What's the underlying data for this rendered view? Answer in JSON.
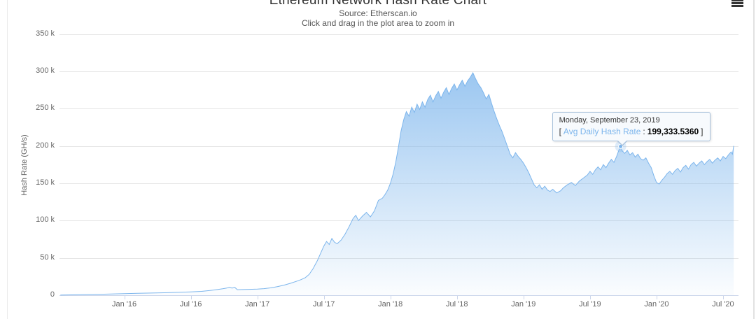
{
  "page": {
    "title": "Ethereum Network Hash Rate Chart",
    "subtitle_source": "Source: Etherscan.io",
    "subtitle_hint": "Click and drag in the plot area to zoom in"
  },
  "menu": {
    "context_icon": "hamburger-menu"
  },
  "tooltip": {
    "date": "Monday, September 23, 2019",
    "open": "[",
    "label": "Avg Daily Hash Rate",
    "sep": ":",
    "value": "199,333.5360",
    "close": "]"
  },
  "colors": {
    "series": "#7cb5ec",
    "grid": "#e6e6e6",
    "axis": "#ccd6eb",
    "label": "#666666",
    "title": "#333333",
    "tooltip_border": "#a9c2dc"
  },
  "chart_data": {
    "type": "area",
    "title": "Ethereum Network Hash Rate Chart",
    "subtitle": [
      "Source: Etherscan.io",
      "Click and drag in the plot area to zoom in"
    ],
    "xlabel": "",
    "ylabel": "Hash Rate (GH/s)",
    "x_unit": "decimal year",
    "y_unit": "GH/s, values stored in thousands (k)",
    "grid": true,
    "legend": false,
    "x_range": [
      2015.513,
      2020.616
    ],
    "y_range": [
      0,
      350
    ],
    "x_ticks": [
      {
        "v": 2016.0,
        "label": "Jan '16"
      },
      {
        "v": 2016.5,
        "label": "Jul '16"
      },
      {
        "v": 2017.0,
        "label": "Jan '17"
      },
      {
        "v": 2017.5,
        "label": "Jul '17"
      },
      {
        "v": 2018.0,
        "label": "Jan '18"
      },
      {
        "v": 2018.5,
        "label": "Jul '18"
      },
      {
        "v": 2019.0,
        "label": "Jan '19"
      },
      {
        "v": 2019.5,
        "label": "Jul '19"
      },
      {
        "v": 2020.0,
        "label": "Jan '20"
      },
      {
        "v": 2020.5,
        "label": "Jul '20"
      }
    ],
    "y_ticks": [
      {
        "v": 0,
        "label": "0"
      },
      {
        "v": 50,
        "label": "50 k"
      },
      {
        "v": 100,
        "label": "100 k"
      },
      {
        "v": 150,
        "label": "150 k"
      },
      {
        "v": 200,
        "label": "200 k"
      },
      {
        "v": 250,
        "label": "250 k"
      },
      {
        "v": 300,
        "label": "300 k"
      },
      {
        "v": 350,
        "label": "350 k"
      }
    ],
    "highlight_point": {
      "x": 2019.73,
      "y": 199.333536,
      "date": "Monday, September 23, 2019",
      "series": "Avg Daily Hash Rate",
      "value_ghs": "199,333.5360"
    },
    "series": [
      {
        "name": "Avg Daily Hash Rate",
        "color": "#7cb5ec",
        "points": [
          [
            2015.52,
            0.2
          ],
          [
            2015.6,
            0.5
          ],
          [
            2015.7,
            0.9
          ],
          [
            2015.8,
            1.2
          ],
          [
            2015.9,
            1.6
          ],
          [
            2016.0,
            2.1
          ],
          [
            2016.1,
            2.5
          ],
          [
            2016.2,
            2.9
          ],
          [
            2016.3,
            3.3
          ],
          [
            2016.4,
            3.8
          ],
          [
            2016.5,
            4.4
          ],
          [
            2016.58,
            5.2
          ],
          [
            2016.65,
            6.5
          ],
          [
            2016.7,
            7.6
          ],
          [
            2016.74,
            8.6
          ],
          [
            2016.77,
            9.6
          ],
          [
            2016.79,
            10.8
          ],
          [
            2016.81,
            9.5
          ],
          [
            2016.83,
            10.6
          ],
          [
            2016.85,
            7.4
          ],
          [
            2016.89,
            7.6
          ],
          [
            2016.94,
            7.9
          ],
          [
            2017.0,
            8.2
          ],
          [
            2017.05,
            8.8
          ],
          [
            2017.1,
            9.8
          ],
          [
            2017.15,
            11.5
          ],
          [
            2017.2,
            13.5
          ],
          [
            2017.25,
            16
          ],
          [
            2017.3,
            19
          ],
          [
            2017.33,
            21
          ],
          [
            2017.36,
            23.5
          ],
          [
            2017.39,
            28
          ],
          [
            2017.42,
            36
          ],
          [
            2017.45,
            46
          ],
          [
            2017.48,
            58
          ],
          [
            2017.5,
            66
          ],
          [
            2017.52,
            72
          ],
          [
            2017.54,
            68
          ],
          [
            2017.56,
            76
          ],
          [
            2017.58,
            71
          ],
          [
            2017.6,
            69
          ],
          [
            2017.63,
            74
          ],
          [
            2017.66,
            82
          ],
          [
            2017.69,
            92
          ],
          [
            2017.72,
            103
          ],
          [
            2017.74,
            107
          ],
          [
            2017.76,
            100
          ],
          [
            2017.79,
            106
          ],
          [
            2017.82,
            111
          ],
          [
            2017.85,
            105
          ],
          [
            2017.88,
            113
          ],
          [
            2017.91,
            127
          ],
          [
            2017.94,
            130
          ],
          [
            2017.96,
            135
          ],
          [
            2017.98,
            141
          ],
          [
            2018.0,
            150
          ],
          [
            2018.02,
            162
          ],
          [
            2018.04,
            178
          ],
          [
            2018.06,
            198
          ],
          [
            2018.08,
            220
          ],
          [
            2018.1,
            235
          ],
          [
            2018.12,
            246
          ],
          [
            2018.14,
            240
          ],
          [
            2018.16,
            252
          ],
          [
            2018.18,
            245
          ],
          [
            2018.2,
            256
          ],
          [
            2018.22,
            249
          ],
          [
            2018.24,
            259
          ],
          [
            2018.26,
            252
          ],
          [
            2018.28,
            262
          ],
          [
            2018.3,
            268
          ],
          [
            2018.32,
            259
          ],
          [
            2018.34,
            267
          ],
          [
            2018.36,
            273
          ],
          [
            2018.38,
            264
          ],
          [
            2018.4,
            272
          ],
          [
            2018.42,
            278
          ],
          [
            2018.44,
            269
          ],
          [
            2018.46,
            277
          ],
          [
            2018.48,
            283
          ],
          [
            2018.5,
            275
          ],
          [
            2018.52,
            282
          ],
          [
            2018.54,
            288
          ],
          [
            2018.56,
            280
          ],
          [
            2018.58,
            287
          ],
          [
            2018.6,
            292
          ],
          [
            2018.62,
            298
          ],
          [
            2018.64,
            290
          ],
          [
            2018.66,
            283
          ],
          [
            2018.68,
            278
          ],
          [
            2018.7,
            271
          ],
          [
            2018.72,
            263
          ],
          [
            2018.74,
            269
          ],
          [
            2018.76,
            257
          ],
          [
            2018.78,
            246
          ],
          [
            2018.8,
            236
          ],
          [
            2018.82,
            227
          ],
          [
            2018.84,
            219
          ],
          [
            2018.86,
            209
          ],
          [
            2018.88,
            199
          ],
          [
            2018.9,
            189
          ],
          [
            2018.92,
            184
          ],
          [
            2018.94,
            191
          ],
          [
            2018.96,
            186
          ],
          [
            2018.98,
            182
          ],
          [
            2019.0,
            177
          ],
          [
            2019.02,
            171
          ],
          [
            2019.04,
            164
          ],
          [
            2019.06,
            156
          ],
          [
            2019.08,
            148
          ],
          [
            2019.1,
            144
          ],
          [
            2019.12,
            148
          ],
          [
            2019.14,
            142
          ],
          [
            2019.16,
            146
          ],
          [
            2019.18,
            141
          ],
          [
            2019.2,
            139
          ],
          [
            2019.22,
            142
          ],
          [
            2019.25,
            137
          ],
          [
            2019.28,
            140
          ],
          [
            2019.3,
            144
          ],
          [
            2019.33,
            148
          ],
          [
            2019.36,
            151
          ],
          [
            2019.39,
            147
          ],
          [
            2019.42,
            153
          ],
          [
            2019.45,
            157
          ],
          [
            2019.48,
            161
          ],
          [
            2019.5,
            166
          ],
          [
            2019.52,
            162
          ],
          [
            2019.54,
            168
          ],
          [
            2019.56,
            172
          ],
          [
            2019.58,
            168
          ],
          [
            2019.6,
            175
          ],
          [
            2019.62,
            171
          ],
          [
            2019.64,
            177
          ],
          [
            2019.66,
            182
          ],
          [
            2019.68,
            178
          ],
          [
            2019.7,
            186
          ],
          [
            2019.71,
            191
          ],
          [
            2019.72,
            196
          ],
          [
            2019.73,
            199.3
          ],
          [
            2019.74,
            194
          ],
          [
            2019.76,
            190
          ],
          [
            2019.78,
            194
          ],
          [
            2019.8,
            188
          ],
          [
            2019.82,
            191
          ],
          [
            2019.84,
            185
          ],
          [
            2019.86,
            189
          ],
          [
            2019.88,
            183
          ],
          [
            2019.9,
            181
          ],
          [
            2019.92,
            184
          ],
          [
            2019.94,
            177
          ],
          [
            2019.96,
            171
          ],
          [
            2019.98,
            160
          ],
          [
            2020.0,
            151
          ],
          [
            2020.02,
            149
          ],
          [
            2020.04,
            154
          ],
          [
            2020.06,
            158
          ],
          [
            2020.08,
            163
          ],
          [
            2020.1,
            166
          ],
          [
            2020.12,
            162
          ],
          [
            2020.14,
            167
          ],
          [
            2020.16,
            170
          ],
          [
            2020.18,
            165
          ],
          [
            2020.2,
            171
          ],
          [
            2020.22,
            174
          ],
          [
            2020.24,
            169
          ],
          [
            2020.26,
            175
          ],
          [
            2020.28,
            178
          ],
          [
            2020.3,
            173
          ],
          [
            2020.32,
            177
          ],
          [
            2020.34,
            180
          ],
          [
            2020.36,
            175
          ],
          [
            2020.38,
            179
          ],
          [
            2020.4,
            182
          ],
          [
            2020.42,
            177
          ],
          [
            2020.44,
            181
          ],
          [
            2020.46,
            184
          ],
          [
            2020.48,
            180
          ],
          [
            2020.5,
            186
          ],
          [
            2020.52,
            183
          ],
          [
            2020.54,
            188
          ],
          [
            2020.56,
            192
          ],
          [
            2020.57,
            189
          ],
          [
            2020.58,
            200
          ]
        ]
      }
    ]
  }
}
